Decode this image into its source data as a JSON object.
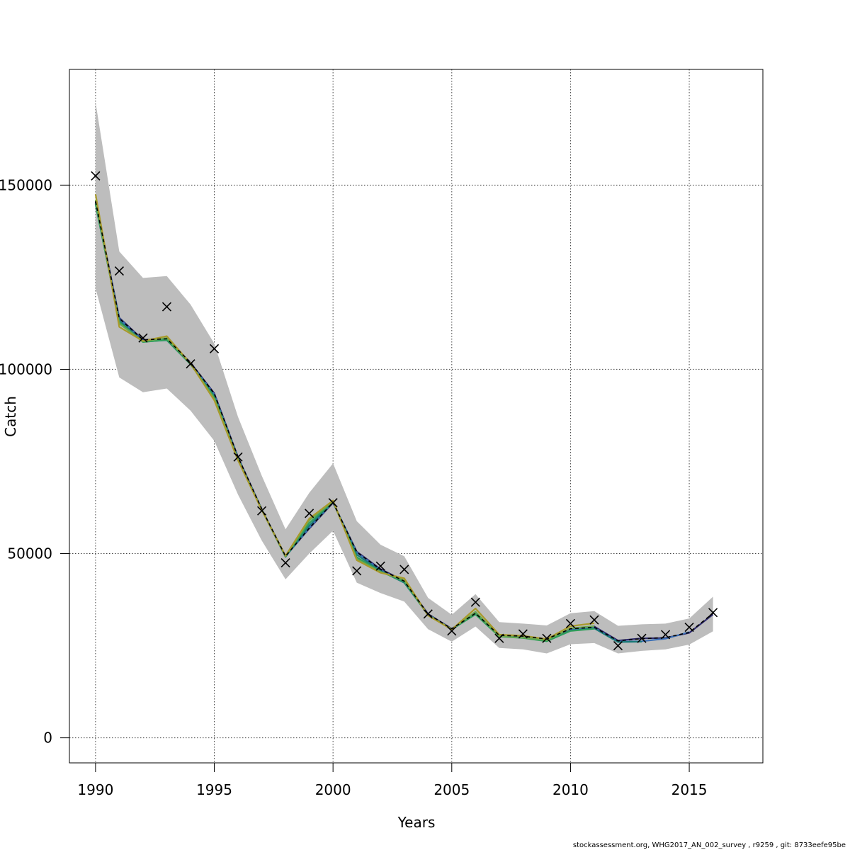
{
  "chart_data": {
    "type": "line",
    "title": "",
    "xlabel": "Years",
    "ylabel": "Catch",
    "xlim": [
      1988.9,
      2018.1
    ],
    "ylim": [
      -6800,
      181400
    ],
    "x_ticks": [
      1990,
      1995,
      2000,
      2005,
      2010,
      2015
    ],
    "x_tick_labels": [
      "1990",
      "1995",
      "2000",
      "2005",
      "2010",
      "2015"
    ],
    "y_ticks": [
      0,
      50000,
      100000,
      150000
    ],
    "y_tick_labels": [
      "0",
      "50000",
      "100000",
      "150000"
    ],
    "grid": true,
    "legend": "none",
    "years": [
      1990,
      1991,
      1992,
      1993,
      1994,
      1995,
      1996,
      1997,
      1998,
      1999,
      2000,
      2001,
      2002,
      2003,
      2004,
      2005,
      2006,
      2007,
      2008,
      2009,
      2010,
      2011,
      2012,
      2013,
      2014,
      2015,
      2016
    ],
    "observed": [
      152500,
      126700,
      108500,
      117000,
      101500,
      105600,
      76200,
      61600,
      47500,
      60900,
      63800,
      45300,
      46600,
      45700,
      33600,
      29000,
      36800,
      27000,
      28200,
      27000,
      31000,
      32000,
      25000,
      27000,
      28000,
      30000,
      34000
    ],
    "confidence_band": {
      "upper": [
        172500,
        132000,
        124800,
        125300,
        117600,
        107000,
        87100,
        71100,
        56600,
        66500,
        74500,
        58800,
        52400,
        49300,
        38000,
        33400,
        39000,
        31400,
        31000,
        30500,
        33800,
        34400,
        30400,
        30800,
        31000,
        32400,
        38300
      ],
      "lower": [
        122000,
        97800,
        93800,
        94800,
        88800,
        80600,
        66000,
        53500,
        43000,
        50000,
        56200,
        42100,
        39300,
        37000,
        29500,
        26100,
        30200,
        24400,
        24000,
        22900,
        25400,
        25700,
        22900,
        23600,
        24000,
        25300,
        28900
      ]
    },
    "series": [
      {
        "color": "#2e2a6e",
        "values": [
          145500,
          114000,
          108000,
          108300,
          101800,
          93500,
          76200,
          62000,
          49300,
          56800,
          63800,
          50500,
          45800,
          42600,
          33600,
          29600,
          33800,
          27900,
          27500,
          26600,
          29500,
          30200,
          26400,
          27000,
          27100,
          28500,
          33500
        ]
      },
      {
        "color": "#3b6fb5",
        "values": [
          145000,
          113800,
          107800,
          108100,
          101600,
          93200,
          76000,
          62000,
          49200,
          57000,
          63900,
          50300,
          45500,
          42300,
          33500,
          29500,
          33700,
          27700,
          27300,
          26400,
          29300,
          29900,
          26100,
          26200,
          26900,
          28700,
          null
        ]
      },
      {
        "color": "#1a7a7a",
        "values": [
          144800,
          113200,
          107500,
          107900,
          101400,
          92800,
          75800,
          61900,
          49100,
          57600,
          64000,
          49700,
          45300,
          42100,
          33400,
          29400,
          33600,
          27600,
          27200,
          26300,
          29100,
          29700,
          26000,
          26100,
          null,
          null,
          null
        ]
      },
      {
        "color": "#2f9e5a",
        "values": [
          145000,
          112800,
          107400,
          108000,
          101400,
          92500,
          75600,
          61900,
          49200,
          58300,
          64100,
          49000,
          45100,
          42400,
          33300,
          29500,
          33500,
          27500,
          27100,
          26200,
          29000,
          29600,
          null,
          null,
          null,
          null,
          null
        ]
      },
      {
        "color": "#6aa84f",
        "values": [
          146000,
          112400,
          107600,
          108500,
          101500,
          92000,
          75500,
          61900,
          49300,
          59000,
          64200,
          48500,
          45000,
          42800,
          33300,
          29500,
          34200,
          27600,
          27200,
          26500,
          29700,
          30300,
          null,
          null,
          null,
          null,
          null
        ]
      },
      {
        "color": "#a89a2a",
        "values": [
          147500,
          111500,
          107700,
          109000,
          101600,
          91600,
          75300,
          61800,
          49400,
          59500,
          64400,
          48200,
          44800,
          43300,
          33200,
          29400,
          35100,
          28000,
          27700,
          26800,
          30300,
          31100,
          null,
          null,
          null,
          null,
          null
        ]
      },
      {
        "color": "#000000",
        "dashed": true,
        "values": [
          145600,
          113800,
          108000,
          108300,
          101900,
          93400,
          76200,
          62100,
          49300,
          56900,
          63900,
          50400,
          45700,
          42500,
          33600,
          29600,
          33800,
          27800,
          27600,
          26800,
          29600,
          30000,
          26300,
          26900,
          27200,
          28600,
          33800
        ]
      }
    ]
  },
  "footer": "stockassessment.org, WHG2017_AN_002_survey , r9259 , git: 8733eefe95be"
}
